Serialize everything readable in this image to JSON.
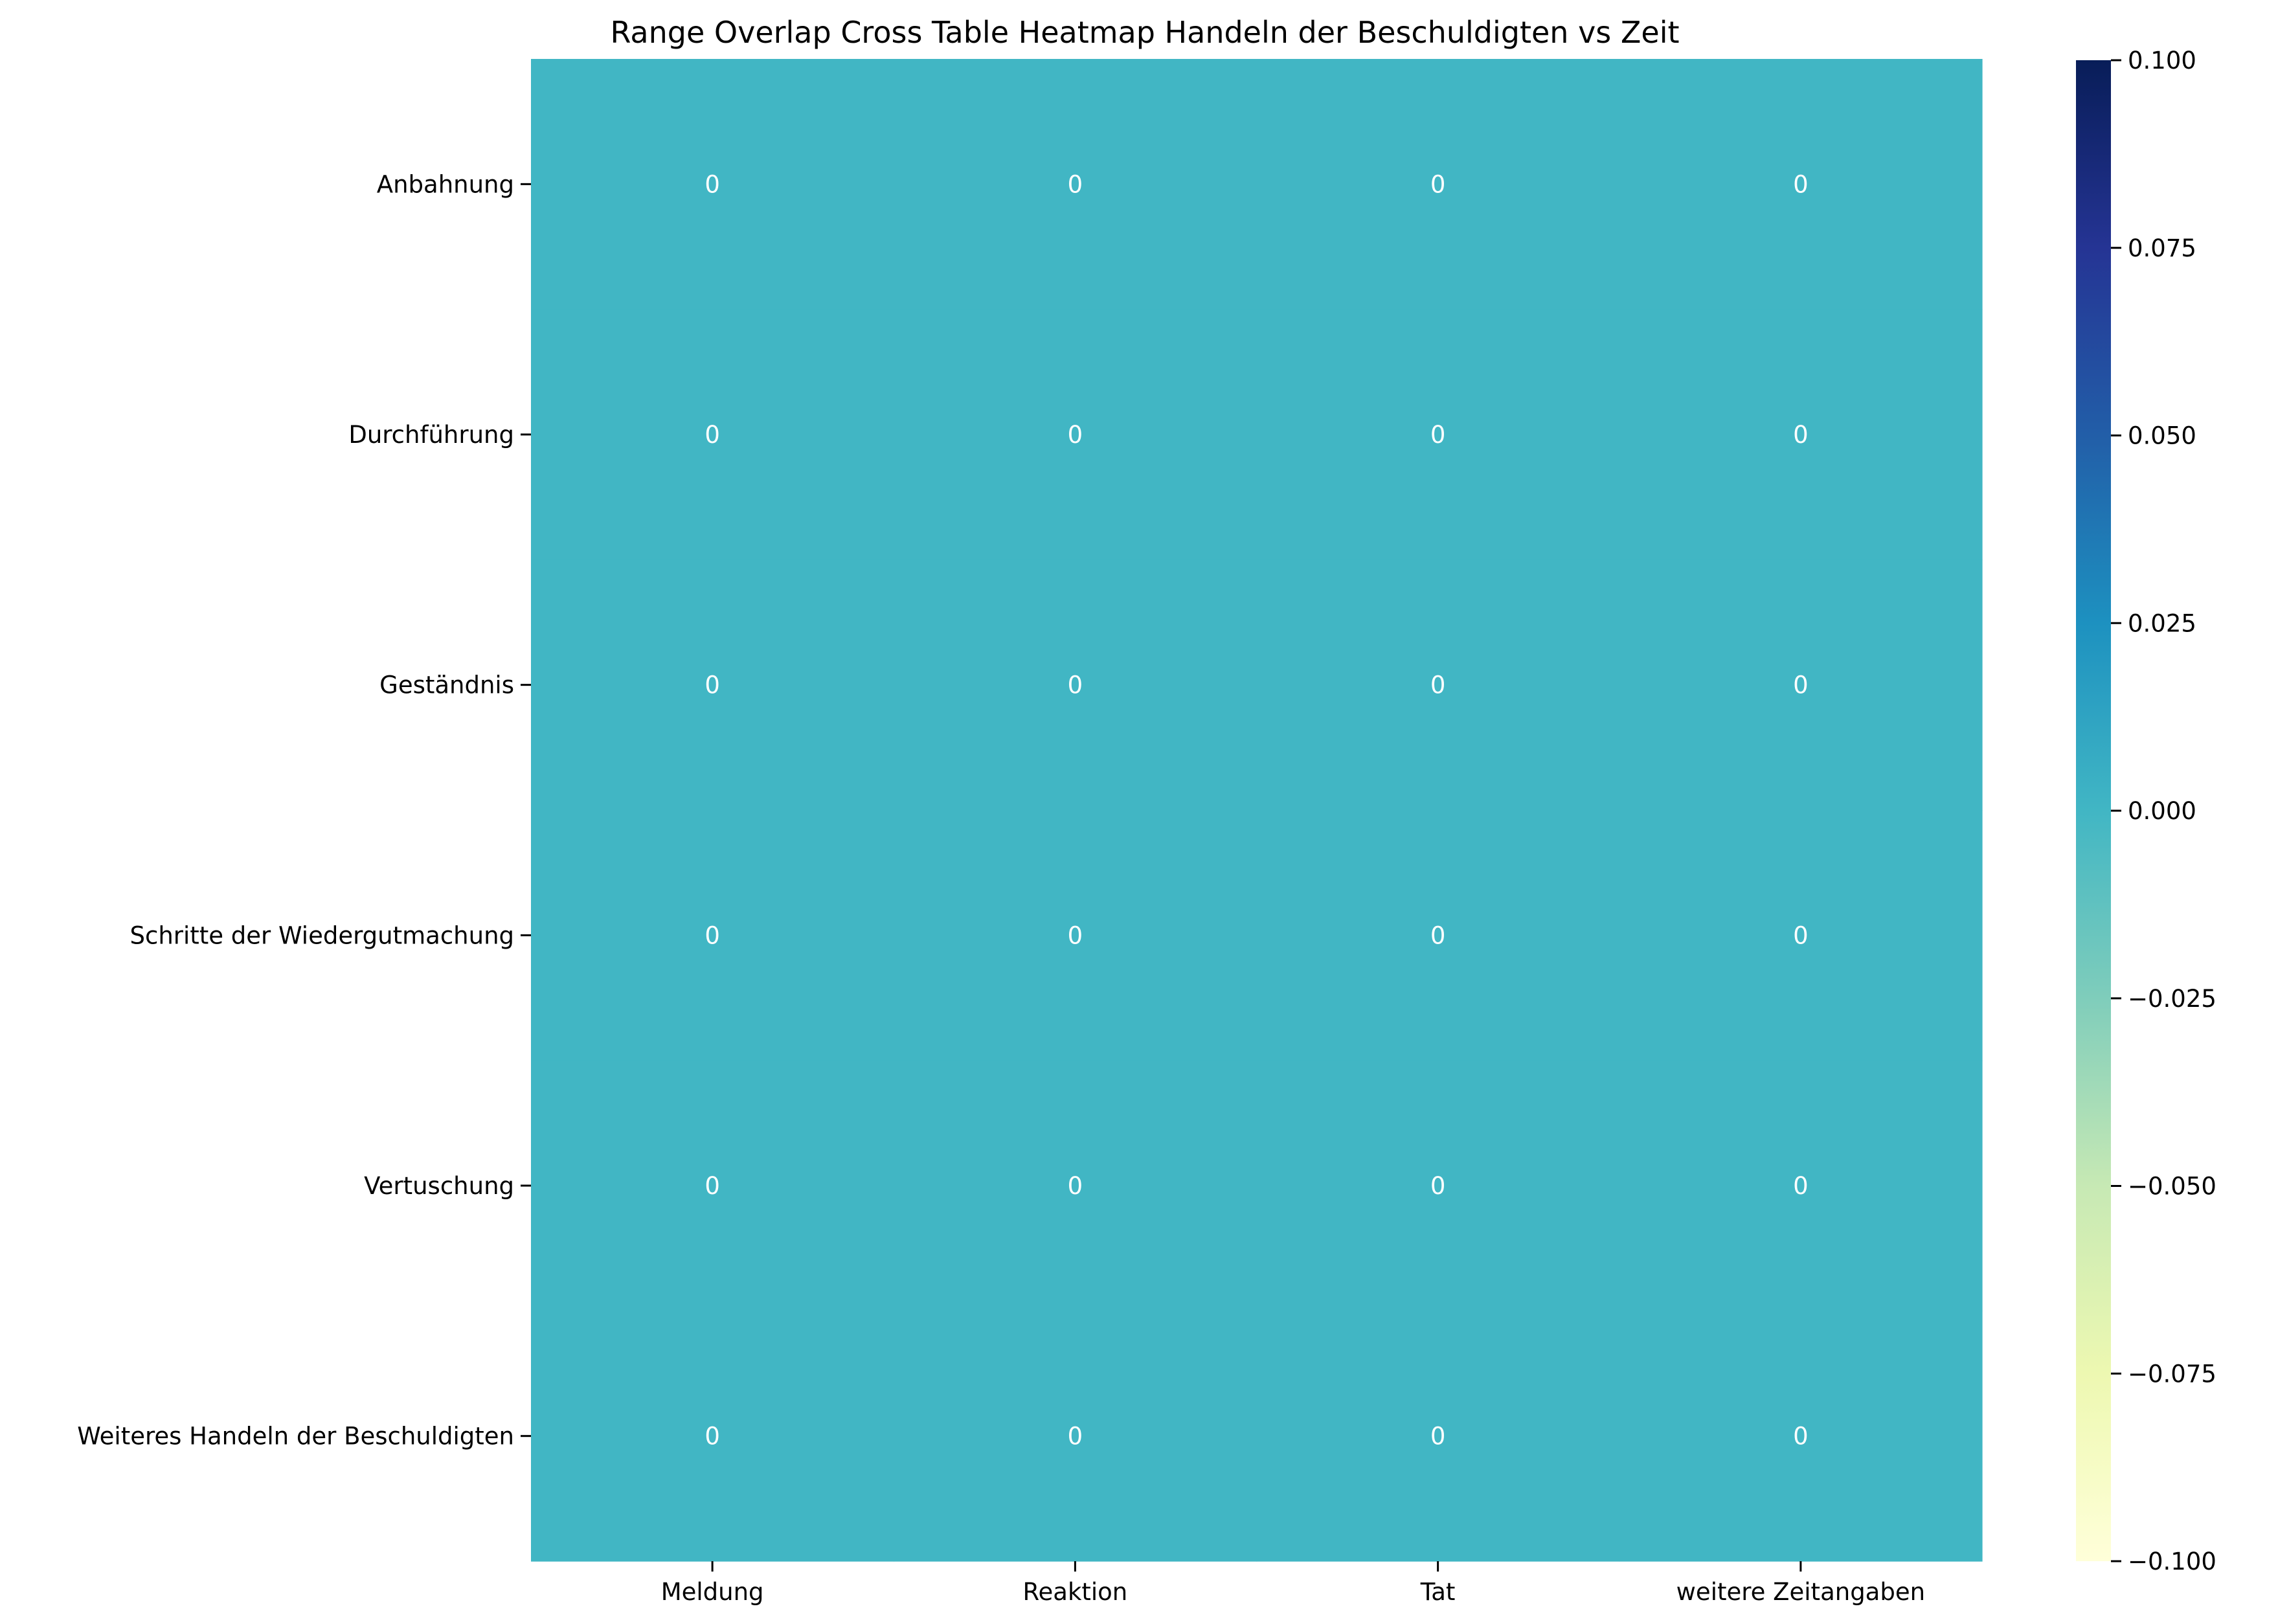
{
  "chart_data": {
    "type": "heatmap",
    "title": "Range Overlap Cross Table Heatmap Handeln der Beschuldigten vs Zeit",
    "xlabel": "",
    "ylabel": "",
    "x_categories": [
      "Meldung",
      "Reaktion",
      "Tat",
      "weitere Zeitangaben"
    ],
    "y_categories": [
      "Anbahnung",
      "Durchführung",
      "Geständnis",
      "Schritte der Wiedergutmachung",
      "Vertuschung",
      "Weiteres Handeln der Beschuldigten"
    ],
    "values": [
      [
        0,
        0,
        0,
        0
      ],
      [
        0,
        0,
        0,
        0
      ],
      [
        0,
        0,
        0,
        0
      ],
      [
        0,
        0,
        0,
        0
      ],
      [
        0,
        0,
        0,
        0
      ],
      [
        0,
        0,
        0,
        0
      ]
    ],
    "annotations": [
      [
        "0",
        "0",
        "0",
        "0"
      ],
      [
        "0",
        "0",
        "0",
        "0"
      ],
      [
        "0",
        "0",
        "0",
        "0"
      ],
      [
        "0",
        "0",
        "0",
        "0"
      ],
      [
        "0",
        "0",
        "0",
        "0"
      ],
      [
        "0",
        "0",
        "0",
        "0"
      ]
    ],
    "colormap": "YlGnBu",
    "colorbar": {
      "vmin": -0.1,
      "vmax": 0.1,
      "ticks": [
        -0.1,
        -0.075,
        -0.05,
        -0.025,
        0.0,
        0.025,
        0.05,
        0.075,
        0.1
      ],
      "tick_labels": [
        "−0.100",
        "−0.075",
        "−0.050",
        "−0.025",
        "0.000",
        "0.025",
        "0.050",
        "0.075",
        "0.100"
      ],
      "gradient_colors": [
        "#ffffd9",
        "#edf8b1",
        "#c7e9b4",
        "#7fcdbb",
        "#41b6c4",
        "#1d91c0",
        "#225ea8",
        "#253494",
        "#081d58"
      ]
    },
    "cell_color": "#41b6c4"
  }
}
